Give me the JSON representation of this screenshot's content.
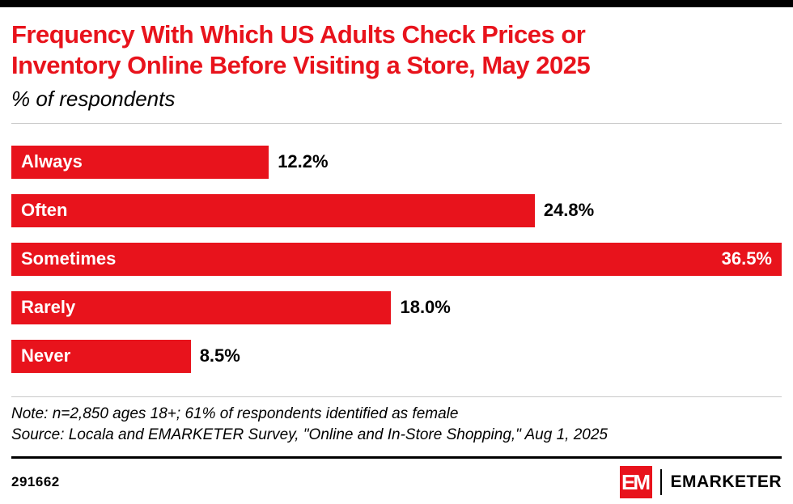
{
  "colors": {
    "accent_red": "#e8131c",
    "text_black": "#000000",
    "divider_gray": "#c9c9c9"
  },
  "header": {
    "title_lines": [
      "Frequency With Which US Adults Check Prices or",
      "Inventory Online Before Visiting a Store, May 2025"
    ],
    "subtitle": "% of respondents"
  },
  "chart_data": {
    "type": "bar",
    "orientation": "horizontal",
    "title": "Frequency With Which US Adults Check Prices or Inventory Online Before Visiting a Store, May 2025",
    "subtitle": "% of respondents",
    "categories": [
      "Always",
      "Often",
      "Sometimes",
      "Rarely",
      "Never"
    ],
    "values": [
      12.2,
      24.8,
      36.5,
      18.0,
      8.5
    ],
    "value_labels": [
      "12.2%",
      "24.8%",
      "36.5%",
      "18.0%",
      "8.5%"
    ],
    "unit": "% of respondents",
    "xlim": [
      0,
      36.5
    ],
    "bar_color": "#e8131c",
    "grid": false,
    "legend": false,
    "value_label_inside_threshold": 0.95
  },
  "notes": {
    "note": "Note: n=2,850 ages 18+; 61% of respondents identified as female",
    "source": "Source: Locala and EMARKETER Survey, \"Online and In-Store Shopping,\" Aug 1, 2025"
  },
  "footer": {
    "chart_id": "291662",
    "logo_mark": "EM",
    "logo_text": "EMARKETER"
  }
}
